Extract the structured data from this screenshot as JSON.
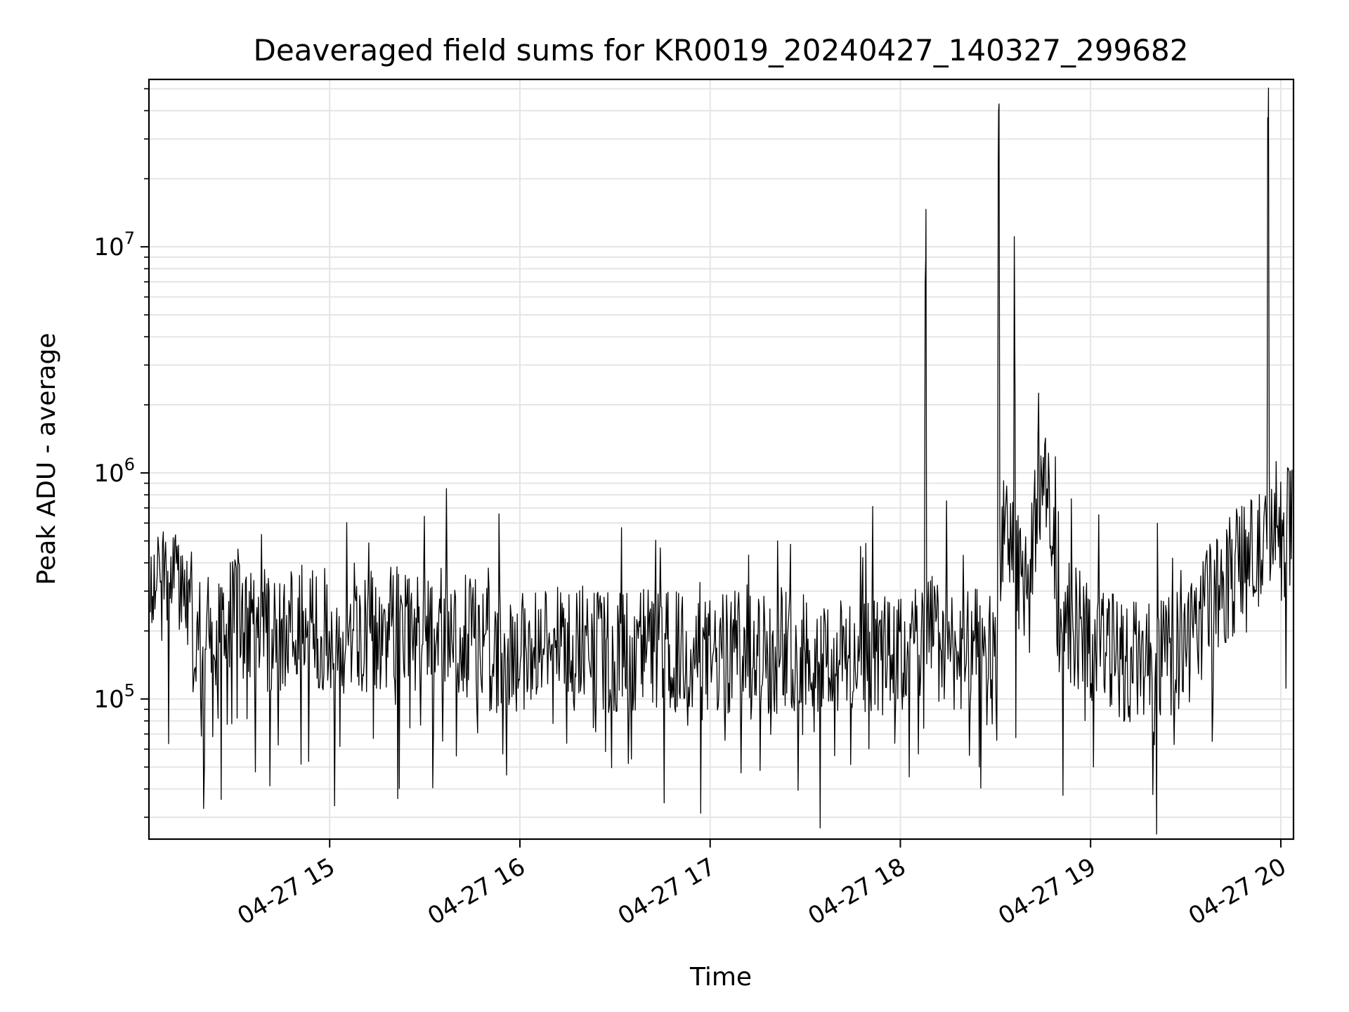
{
  "chart_data": {
    "type": "line",
    "title": "Deaveraged field sums for KR0019_20240427_140327_299682",
    "xlabel": "Time",
    "ylabel": "Peak ADU - average",
    "y_scale": "log",
    "ylim": [
      24000,
      55000000
    ],
    "xlim": [
      "2024-04-27 14:03",
      "2024-04-27 20:04"
    ],
    "grid": true,
    "line_color": "#000000",
    "grid_color": "#e5e5e5",
    "x_ticks": [
      {
        "value": "2024-04-27 15:00",
        "label": "04-27 15"
      },
      {
        "value": "2024-04-27 16:00",
        "label": "04-27 16"
      },
      {
        "value": "2024-04-27 17:00",
        "label": "04-27 17"
      },
      {
        "value": "2024-04-27 18:00",
        "label": "04-27 18"
      },
      {
        "value": "2024-04-27 19:00",
        "label": "04-27 19"
      },
      {
        "value": "2024-04-27 20:00",
        "label": "04-27 20"
      }
    ],
    "y_ticks": [
      {
        "value": 100000,
        "base": "10",
        "exp": "5"
      },
      {
        "value": 1000000,
        "base": "10",
        "exp": "6"
      },
      {
        "value": 10000000,
        "base": "10",
        "exp": "7"
      }
    ],
    "series": [
      {
        "x": [
          "2024-04-27 14:03",
          "2024-04-27 14:10",
          "2024-04-27 14:20",
          "2024-04-27 14:30",
          "2024-04-27 14:40",
          "2024-04-27 14:50",
          "2024-04-27 15:00",
          "2024-04-27 15:10",
          "2024-04-27 15:20",
          "2024-04-27 15:30",
          "2024-04-27 15:40",
          "2024-04-27 15:50",
          "2024-04-27 15:59",
          "2024-04-27 16:10",
          "2024-04-27 16:20",
          "2024-04-27 16:30",
          "2024-04-27 16:40",
          "2024-04-27 16:50",
          "2024-04-27 17:00",
          "2024-04-27 17:10",
          "2024-04-27 17:20",
          "2024-04-27 17:30",
          "2024-04-27 17:40",
          "2024-04-27 17:50",
          "2024-04-27 18:00",
          "2024-04-27 18:05",
          "2024-04-27 18:08",
          "2024-04-27 18:09",
          "2024-04-27 18:12",
          "2024-04-27 18:20",
          "2024-04-27 18:30",
          "2024-04-27 18:31",
          "2024-04-27 18:32",
          "2024-04-27 18:36",
          "2024-04-27 18:40",
          "2024-04-27 18:45",
          "2024-04-27 18:50",
          "2024-04-27 19:00",
          "2024-04-27 19:10",
          "2024-04-27 19:20",
          "2024-04-27 19:30",
          "2024-04-27 19:40",
          "2024-04-27 19:50",
          "2024-04-27 19:55",
          "2024-04-27 19:56",
          "2024-04-27 20:00",
          "2024-04-27 20:04"
        ],
        "y": [
          250000,
          400000,
          180000,
          220000,
          200000,
          210000,
          200000,
          190000,
          210000,
          180000,
          200000,
          170000,
          160000,
          180000,
          170000,
          160000,
          170000,
          160000,
          150000,
          165000,
          160000,
          170000,
          150000,
          160000,
          150000,
          180000,
          9000000,
          200000,
          180000,
          160000,
          170000,
          40000000,
          500000,
          7500000,
          350000,
          1100000,
          250000,
          180000,
          150000,
          140000,
          170000,
          300000,
          420000,
          450000,
          31000000,
          620000,
          550000
        ]
      }
    ]
  }
}
